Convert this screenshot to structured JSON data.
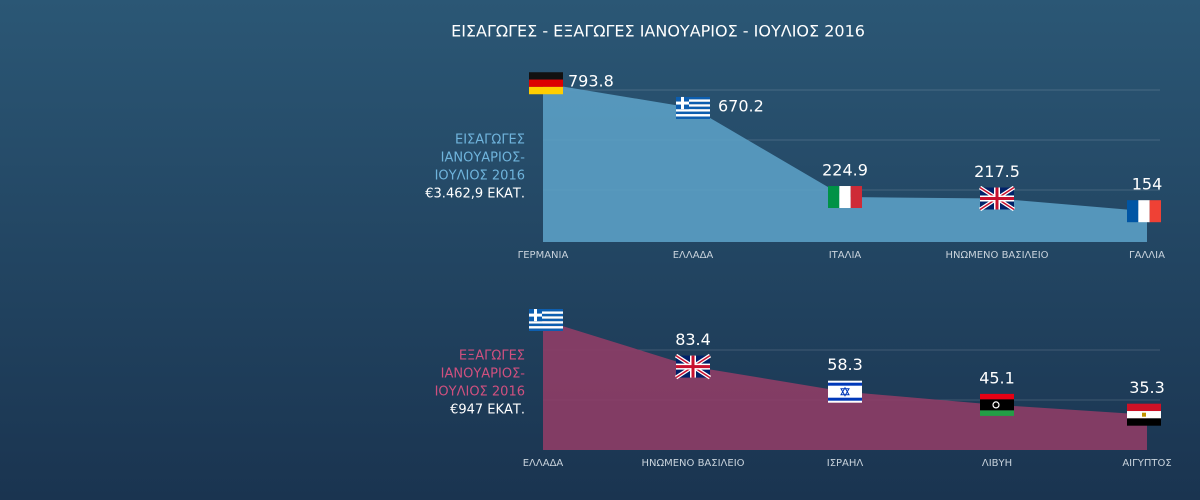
{
  "title": "ΕΙΣΑΓΩΓΕΣ - ΕΞΑΓΩΓΕΣ ΙΑΝΟΥΑΡΙΟΣ - ΙΟΥΛΙΟΣ 2016",
  "chart_data": [
    {
      "type": "area",
      "color": "#5b9ec4",
      "label_lines": [
        "ΕΙΣΑΓΩΓΕΣ",
        "ΙΑΝΟΥΑΡΙΟΣ-",
        "ΙΟΥΛΙΟΣ 2016"
      ],
      "total": "€3.462,9 ΕΚΑΤ.",
      "categories": [
        "ΓΕΡΜΑΝΙΑ",
        "ΕΛΛΑΔΑ",
        "ΙΤΑΛΙΑ",
        "ΗΝΩΜΕΝΟ ΒΑΣΙΛΕΙΟ",
        "ΓΑΛΛΙΑ"
      ],
      "values": [
        793.8,
        670.2,
        224.9,
        217.5,
        154
      ],
      "value_labels": [
        "793.8",
        "670.2",
        "224.9",
        "217.5",
        "154"
      ],
      "ylim": [
        0,
        800
      ]
    },
    {
      "type": "area",
      "color": "#8e3d66",
      "label_lines": [
        "ΕΞΑΓΩΓΕΣ",
        "ΙΑΝΟΥΑΡΙΟΣ-",
        "ΙΟΥΛΙΟΣ 2016"
      ],
      "total": "€947 ΕΚΑΤ.",
      "categories": [
        "ΕΛΛΑΔΑ",
        "ΗΝΩΜΕΝΟ ΒΑΣΙΛΕΙΟ",
        "ΙΣΡΑΗΛ",
        "ΛΙΒΥΗ",
        "ΑΙΓΥΠΤΟΣ"
      ],
      "values": [
        130,
        83.4,
        58.3,
        45.1,
        35.3
      ],
      "value_labels": [
        null,
        "83.4",
        "58.3",
        "45.1",
        "35.3"
      ],
      "ylim": [
        0,
        140
      ]
    }
  ]
}
